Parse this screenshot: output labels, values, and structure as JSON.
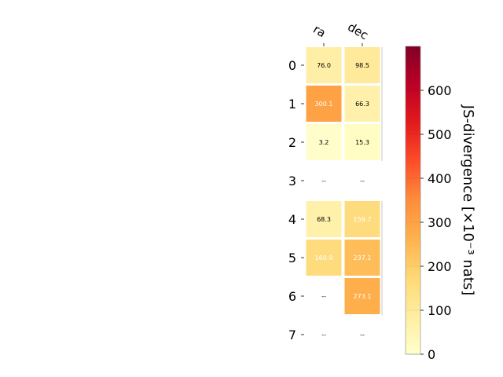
{
  "chart_data": {
    "type": "heatmap",
    "x_categories": [
      "ra",
      "dec"
    ],
    "y_categories": [
      "0",
      "1",
      "2",
      "3",
      "4",
      "5",
      "6",
      "7"
    ],
    "values": [
      [
        76.0,
        98.5
      ],
      [
        300.1,
        66.3
      ],
      [
        3.2,
        15.3
      ],
      [
        null,
        null
      ],
      [
        68.3,
        159.7
      ],
      [
        160.9,
        237.1
      ],
      [
        null,
        273.1
      ],
      [
        null,
        null
      ]
    ],
    "cell_labels": [
      [
        "76.0",
        "98.5"
      ],
      [
        "300.1",
        "66.3"
      ],
      [
        "3.2",
        "15.3"
      ],
      [
        "--",
        "--"
      ],
      [
        "68.3",
        "159.7"
      ],
      [
        "160.9",
        "237.1"
      ],
      [
        "--",
        "273.1"
      ],
      [
        "--",
        "--"
      ]
    ],
    "colorbar": {
      "label": "JS-divergence [×10⁻³ nats]",
      "range": [
        0,
        700
      ],
      "ticks": [
        "0",
        "100",
        "200",
        "300",
        "400",
        "500",
        "600"
      ],
      "colormap": "YlOrRd"
    },
    "legend": "none",
    "grid": false
  }
}
